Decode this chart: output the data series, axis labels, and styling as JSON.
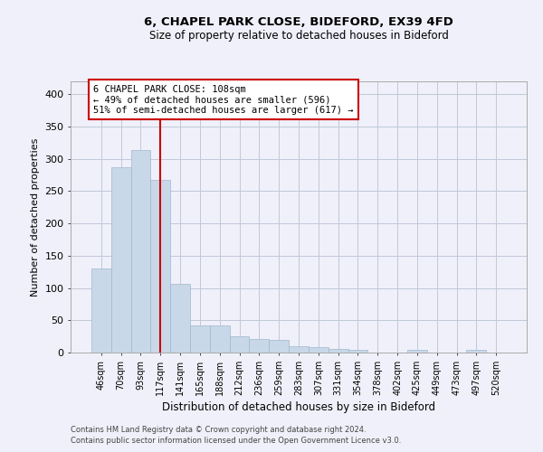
{
  "title1": "6, CHAPEL PARK CLOSE, BIDEFORD, EX39 4FD",
  "title2": "Size of property relative to detached houses in Bideford",
  "xlabel": "Distribution of detached houses by size in Bideford",
  "ylabel": "Number of detached properties",
  "categories": [
    "46sqm",
    "70sqm",
    "93sqm",
    "117sqm",
    "141sqm",
    "165sqm",
    "188sqm",
    "212sqm",
    "236sqm",
    "259sqm",
    "283sqm",
    "307sqm",
    "331sqm",
    "354sqm",
    "378sqm",
    "402sqm",
    "425sqm",
    "449sqm",
    "473sqm",
    "497sqm",
    "520sqm"
  ],
  "values": [
    130,
    287,
    313,
    268,
    107,
    42,
    42,
    25,
    21,
    20,
    10,
    8,
    6,
    4,
    0,
    0,
    4,
    0,
    0,
    4,
    0
  ],
  "bar_color": "#c8d8e8",
  "bar_edgecolor": "#a0b8cc",
  "vline_x": 3,
  "vline_color": "#cc0000",
  "annotation_text": "6 CHAPEL PARK CLOSE: 108sqm\n← 49% of detached houses are smaller (596)\n51% of semi-detached houses are larger (617) →",
  "annotation_box_color": "white",
  "annotation_box_edgecolor": "#cc0000",
  "ylim": [
    0,
    420
  ],
  "yticks": [
    0,
    50,
    100,
    150,
    200,
    250,
    300,
    350,
    400
  ],
  "footer1": "Contains HM Land Registry data © Crown copyright and database right 2024.",
  "footer2": "Contains public sector information licensed under the Open Government Licence v3.0.",
  "background_color": "#f0f0fa",
  "grid_color": "#c0c8d8"
}
